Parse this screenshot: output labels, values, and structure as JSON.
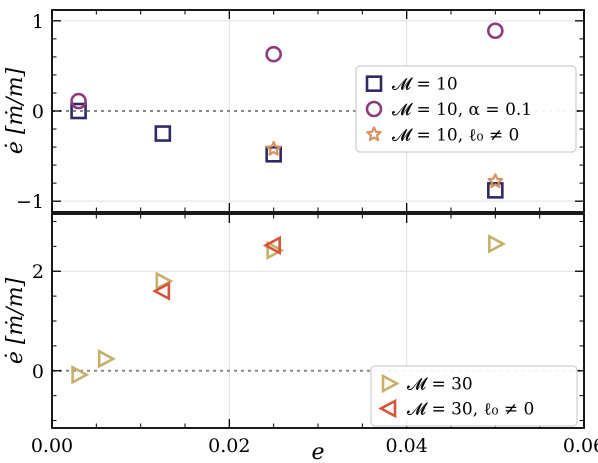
{
  "chart_data": [
    {
      "type": "scatter",
      "panel": "top",
      "xlabel": "",
      "ylabel": "ė [ṁ/m]",
      "xlim": [
        0.0,
        0.06
      ],
      "ylim": [
        -1.12,
        1.12
      ],
      "yticks": [
        -1,
        0,
        1
      ],
      "ytick_labels": [
        "−1",
        "0",
        "1"
      ],
      "grid": true,
      "hline": 0,
      "legend_placement": "center-right",
      "series": [
        {
          "name": "𝓜 = 10",
          "marker": "square",
          "color": "#2f2a66",
          "x": [
            0.003,
            0.0125,
            0.025,
            0.05
          ],
          "y": [
            0.0,
            -0.25,
            -0.48,
            -0.88
          ]
        },
        {
          "name": "𝓜 = 10, α = 0.1",
          "marker": "circle",
          "color": "#8c3b7e",
          "x": [
            0.003,
            0.025,
            0.05
          ],
          "y": [
            0.11,
            0.63,
            0.89
          ]
        },
        {
          "name": "𝓜 = 10, ℓ₀ ≠ 0",
          "marker": "star",
          "color": "#d99264",
          "x": [
            0.025,
            0.05
          ],
          "y": [
            -0.42,
            -0.78
          ]
        }
      ]
    },
    {
      "type": "scatter",
      "panel": "bottom",
      "xlabel": "e",
      "ylabel": "ė [ṁ/m]",
      "xlim": [
        0.0,
        0.06
      ],
      "ylim": [
        -1.15,
        3.15
      ],
      "xticks": [
        0.0,
        0.02,
        0.04,
        0.06
      ],
      "xtick_labels": [
        "0.00",
        "0.02",
        "0.04",
        "0.06"
      ],
      "yticks": [
        0,
        2
      ],
      "ytick_labels": [
        "0",
        "2"
      ],
      "grid": true,
      "hline": 0,
      "legend_placement": "bottom-right",
      "series": [
        {
          "name": "𝓜 = 30",
          "marker": "triangle-right",
          "color": "#c6b06a",
          "x": [
            0.003,
            0.006,
            0.0125,
            0.025,
            0.05
          ],
          "y": [
            -0.08,
            0.24,
            1.8,
            2.42,
            2.55
          ]
        },
        {
          "name": "𝓜 = 30, ℓ₀ ≠ 0",
          "marker": "triangle-left",
          "color": "#d9533a",
          "x": [
            0.0125,
            0.025
          ],
          "y": [
            1.6,
            2.52
          ]
        }
      ]
    }
  ]
}
